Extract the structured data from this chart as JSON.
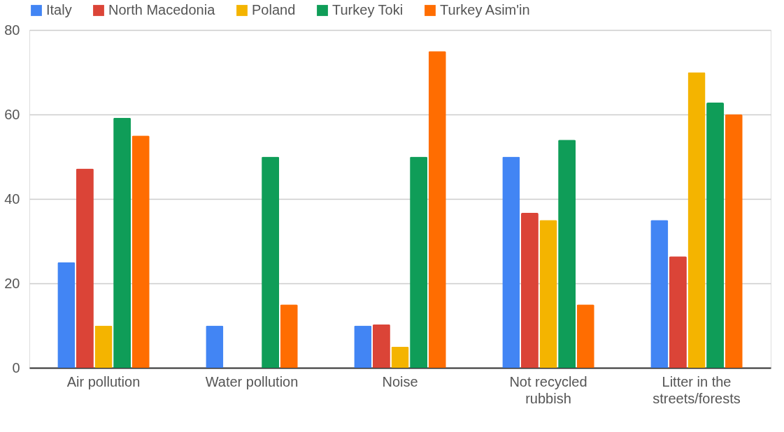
{
  "chart_data": {
    "type": "bar",
    "categories": [
      "Air pollution",
      "Water pollution",
      "Noise",
      "Not recycled rubbish",
      "Litter in the streets/forests"
    ],
    "series": [
      {
        "name": "Italy",
        "color": "#4285f4",
        "values": [
          25,
          10,
          10,
          50,
          35
        ]
      },
      {
        "name": "North Macedonia",
        "color": "#db4437",
        "values": [
          47.2,
          null,
          10.3,
          36.7,
          26.4
        ]
      },
      {
        "name": "Poland",
        "color": "#f4b400",
        "values": [
          10,
          null,
          5,
          35,
          70
        ]
      },
      {
        "name": "Turkey Toki",
        "color": "#0f9d58",
        "values": [
          59.2,
          50,
          50,
          54,
          62.8
        ]
      },
      {
        "name": "Turkey Asim'in",
        "color": "#ff6d01",
        "values": [
          55,
          15,
          75,
          15,
          60
        ]
      }
    ],
    "ylim": [
      0,
      80
    ],
    "yticks": [
      0,
      20,
      40,
      60,
      80
    ],
    "grid": "y",
    "legend": "top"
  }
}
